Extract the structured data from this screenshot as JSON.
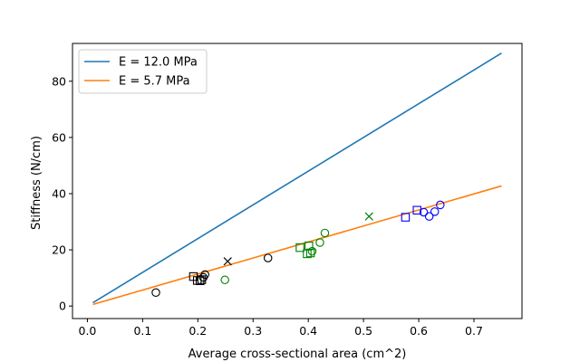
{
  "chart_data": {
    "type": "scatter",
    "title": "",
    "xlabel": "Average cross-sectional area (cm^2)",
    "ylabel": "Stiffness (N/cm)",
    "xlim": [
      -0.027,
      0.787
    ],
    "ylim": [
      -4.45,
      93.45
    ],
    "xticks": [
      0.0,
      0.1,
      0.2,
      0.3,
      0.4,
      0.5,
      0.6,
      0.7
    ],
    "xtick_labels": [
      "0.0",
      "0.1",
      "0.2",
      "0.3",
      "0.4",
      "0.5",
      "0.6",
      "0.7"
    ],
    "yticks": [
      0,
      20,
      40,
      60,
      80
    ],
    "ytick_labels": [
      "0",
      "20",
      "40",
      "60",
      "80"
    ],
    "grid": false,
    "legend_position": "top-left",
    "lines": [
      {
        "name": "E = 12.0 MPa",
        "color": "#1f77b4",
        "x": [
          0.01,
          0.75
        ],
        "y": [
          1.2,
          90.0
        ]
      },
      {
        "name": "E = 5.7 MPa",
        "color": "#ff7f0e",
        "x": [
          0.01,
          0.75
        ],
        "y": [
          0.57,
          42.75
        ]
      }
    ],
    "scatter_groups": [
      {
        "marker": "circle",
        "color": "#000000",
        "x": [
          0.124,
          0.21,
          0.213,
          0.327
        ],
        "y": [
          4.8,
          10.2,
          11.2,
          17.1
        ]
      },
      {
        "marker": "square",
        "color": "#000000",
        "x": [
          0.192,
          0.199,
          0.204,
          0.207
        ],
        "y": [
          10.5,
          9.1,
          9.0,
          9.4
        ]
      },
      {
        "marker": "x",
        "color": "#000000",
        "x": [
          0.254
        ],
        "y": [
          15.9
        ]
      },
      {
        "marker": "circle",
        "color": "#008000",
        "x": [
          0.249,
          0.407,
          0.421,
          0.43
        ],
        "y": [
          9.3,
          19.5,
          22.6,
          26.0
        ]
      },
      {
        "marker": "square",
        "color": "#008000",
        "x": [
          0.385,
          0.398,
          0.401,
          0.404
        ],
        "y": [
          20.8,
          18.6,
          21.4,
          18.9
        ]
      },
      {
        "marker": "x",
        "color": "#008000",
        "x": [
          0.51
        ],
        "y": [
          31.9
        ]
      },
      {
        "marker": "circle",
        "color": "#0000ff",
        "x": [
          0.609,
          0.619,
          0.629,
          0.639
        ],
        "y": [
          33.4,
          31.9,
          33.6,
          36.0
        ]
      },
      {
        "marker": "square",
        "color": "#0000ff",
        "x": [
          0.576,
          0.597
        ],
        "y": [
          31.6,
          34.1
        ]
      }
    ]
  }
}
